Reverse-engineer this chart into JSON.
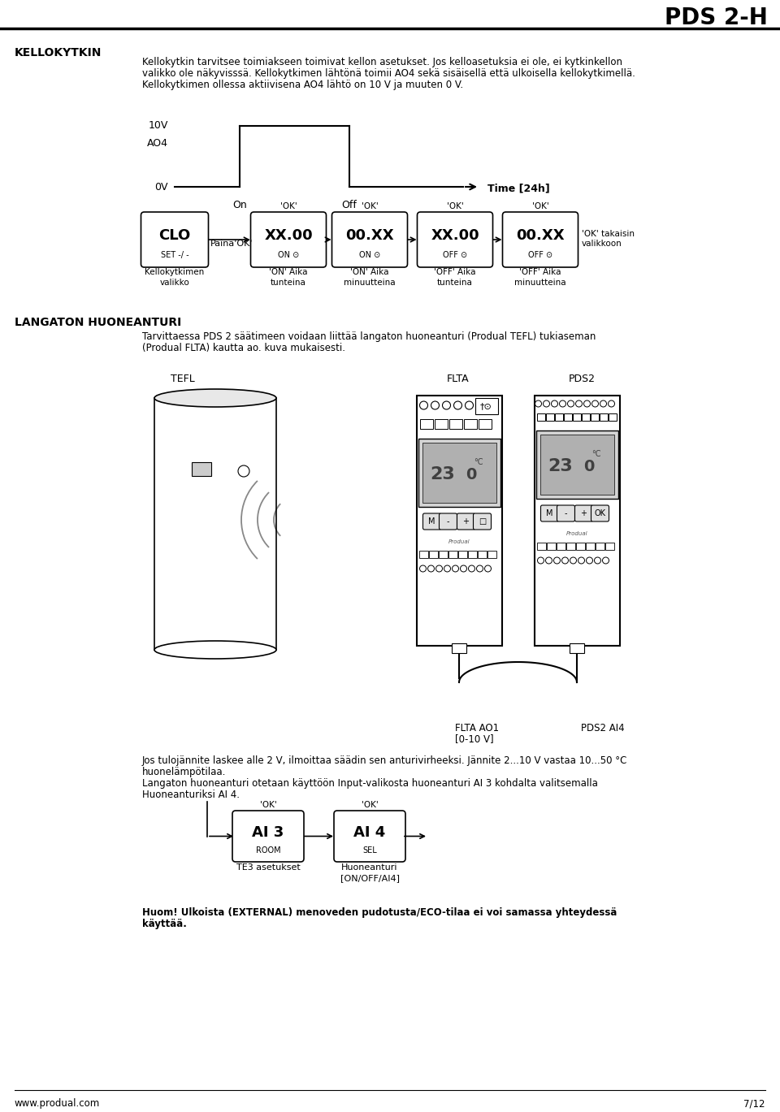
{
  "title": "PDS 2-H",
  "section1_header": "KELLOKYTKIN",
  "section1_text1": "Kellokytkin tarvitsee toimiakseen toimivat kellon asetukset. Jos kelloasetuksia ei ole, ei kytkinkellon",
  "section1_text2": "valikko ole näkyvisssä. Kellokytkimen lähtönä toimii AO4 sekä sisäisellä että ulkoisella kellokytkimellä.",
  "section1_text3": "Kellokytkimen ollessa aktiivisena AO4 lähtö on 10 V ja muuten 0 V.",
  "waveform_label_10v": "10V",
  "waveform_label_ao4": "AO4",
  "waveform_label_0v": "0V",
  "waveform_label_on": "On",
  "waveform_label_off": "Off",
  "waveform_label_time": "Time [24h]",
  "box1_main": "CLO",
  "box1_sub": "SET -/ -",
  "box1_label1": "Kellokytkimen",
  "box1_label2": "valikko",
  "box1_arrow_text": "Paina'OK'",
  "box2_main": "XX.00",
  "box2_sub": "ON ⊙",
  "box2_label1": "'ON' Aika",
  "box2_label2": "tunteina",
  "box2_ok": "'OK'",
  "box3_main": "00.XX",
  "box3_sub": "ON ⊙",
  "box3_label1": "'ON' Aika",
  "box3_label2": "minuutteina",
  "box3_ok": "'OK'",
  "box4_main": "XX.00",
  "box4_sub": "OFF ⊙",
  "box4_label1": "'OFF' Aika",
  "box4_label2": "tunteina",
  "box4_ok": "'OK'",
  "box5_main": "00.XX",
  "box5_sub": "OFF ⊙",
  "box5_label1": "'OFF' Aika",
  "box5_label2": "minuutteina",
  "box5_ok": "'OK'",
  "box5_end_text1": "'OK' takaisin",
  "box5_end_text2": "valikkoon",
  "section2_header": "LANGATON HUONEANTURI",
  "section2_text1": "Tarvittaessa PDS 2 säätimeen voidaan liittää langaton huoneanturi (Produal TEFL) tukiaseman",
  "section2_text2": "(Produal FLTA) kautta ao. kuva mukaisesti.",
  "tefl_label": "TEFL",
  "flta_label": "FLTA",
  "pds2_label": "PDS2",
  "flta_ao1_label": "FLTA AO1",
  "flta_ao1_label2": "[0-10 V]",
  "pds2_ai4_label": "PDS2 AI4",
  "section2_text3": "Jos tulojännite laskee alle 2 V, ilmoittaa säädin sen anturivirheeksi. Jännite 2...10 V vastaa 10...50 °C",
  "section2_text4": "huonelämpötilaa.",
  "section2_text5": "Langaton huoneanturi otetaan käyttöön Input-valikosta huoneanturi AI 3 kohdalta valitsemalla",
  "section2_text6": "Huoneanturiksi AI 4.",
  "ai3_main": "AI 3",
  "ai3_sub": "ROOM",
  "ai3_label": "TE3 asetukset",
  "ai3_ok": "'OK'",
  "ai4_main": "AI 4",
  "ai4_sub": "SEL",
  "ai4_label1": "Huoneanturi",
  "ai4_label2": "[ON/OFF/AI4]",
  "ai4_ok": "'OK'",
  "note_bold": "Huom! Ulkoista (EXTERNAL) menoveden pudotusta/ECO-tilaa ei voi samassa yhteydessä",
  "note_bold2": "käyttää.",
  "footer_url": "www.produal.com",
  "footer_page": "7/12",
  "bg_color": "#ffffff",
  "text_color": "#000000"
}
